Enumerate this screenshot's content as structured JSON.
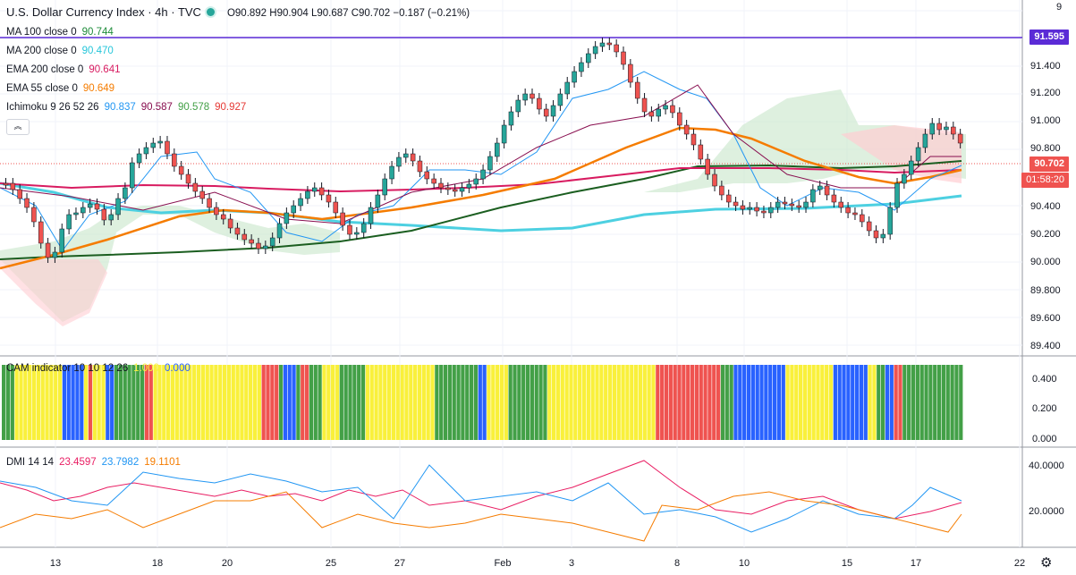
{
  "header": {
    "title": "U.S. Dollar Currency Index · 4h · TVC",
    "ohlc": "O90.892 H90.904 L90.687 C90.702 −0.187 (−0.21%)"
  },
  "indicators": [
    {
      "name": "MA 100 close 0",
      "value": "90.744",
      "color": "#1e8c3a"
    },
    {
      "name": "MA 200 close 0",
      "value": "90.470",
      "color": "#26c6da"
    },
    {
      "name": "EMA 200 close 0",
      "value": "90.641",
      "color": "#d81b60"
    },
    {
      "name": "EMA 55 close 0",
      "value": "90.649",
      "color": "#f57c00"
    }
  ],
  "ichimoku": {
    "name": "Ichimoku 9 26 52 26",
    "values": [
      "90.837",
      "90.587",
      "90.578",
      "90.927"
    ],
    "colors": [
      "#2196f3",
      "#880e4f",
      "#43a047",
      "#e53935"
    ]
  },
  "cam": {
    "name": "CAM indicator 10 10 12 26",
    "values": [
      "1.000",
      "0.000"
    ],
    "colors": [
      "#f9f03b",
      "#2962ff"
    ]
  },
  "dmi": {
    "name": "DMI 14 14",
    "values": [
      "23.4597",
      "23.7982",
      "19.1101"
    ],
    "colors": [
      "#e91e63",
      "#2196f3",
      "#f57c00"
    ]
  },
  "price_axis": [
    "9",
    "91.400",
    "91.200",
    "91.000",
    "90.800",
    "90.400",
    "90.200",
    "90.000",
    "89.800",
    "89.600",
    "89.400"
  ],
  "cam_axis": [
    "0.400",
    "0.200",
    "0.000"
  ],
  "dmi_axis": [
    "40.0000",
    "20.0000"
  ],
  "tags": {
    "high_line": "91.595",
    "last_price": "90.702",
    "countdown": "01:58:20"
  },
  "time_axis": [
    "13",
    "18",
    "20",
    "25",
    "27",
    "Feb",
    "3",
    "8",
    "10",
    "15",
    "17",
    "22"
  ],
  "colors": {
    "up": "#26a69a",
    "down": "#ef5350",
    "horizontal_line": "#5b2bd6",
    "tag_red": "#ef5350"
  },
  "collapse_button": "︽"
}
